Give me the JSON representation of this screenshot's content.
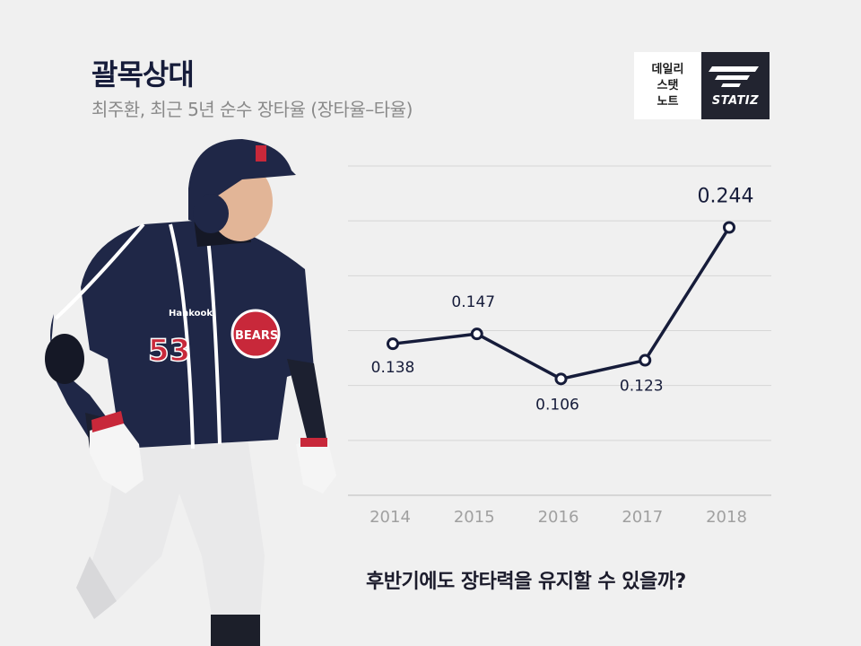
{
  "header": {
    "title": "괄목상대",
    "subtitle": "최주환, 최근 5년 순수 장타율 (장타율–타율)"
  },
  "logo": {
    "lines": [
      "데일리",
      "스탯",
      "노트"
    ],
    "brand": "STATIZ"
  },
  "player": {
    "jersey_number": "53",
    "team_text": "BEARS",
    "sponsor": "Hankook"
  },
  "chart_data": {
    "type": "line",
    "categories": [
      "2014",
      "2015",
      "2016",
      "2017",
      "2018"
    ],
    "series": [
      {
        "values": [
          0.138,
          0.147,
          0.106,
          0.123,
          0.244
        ]
      }
    ],
    "data_labels": [
      "0.138",
      "0.147",
      "0.106",
      "0.123",
      "0.244"
    ],
    "title": "",
    "xlabel": "",
    "ylabel": "",
    "ylim": [
      0.0,
      0.3
    ],
    "grid": true,
    "line_color": "#161c3a"
  },
  "footer": {
    "question": "후반기에도 장타력을 유지할 수 있을까?"
  }
}
